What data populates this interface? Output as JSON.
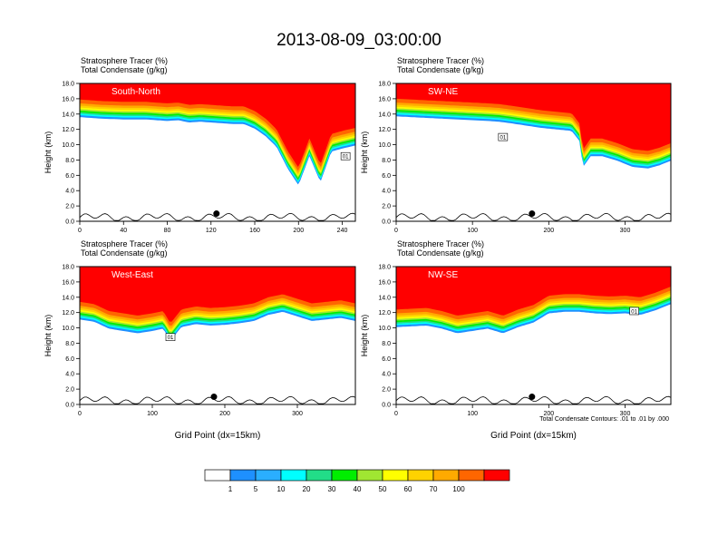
{
  "title": "2013-08-09_03:00:00",
  "footnote": "Total Condensate Contours: .01 to .01 by .000",
  "colorbar": {
    "colors": [
      "#ffffff",
      "#1e90ff",
      "#2aaeff",
      "#00ffff",
      "#22dd88",
      "#00ee00",
      "#a0e632",
      "#ffff00",
      "#ffd200",
      "#ffaa00",
      "#ff6600",
      "#ff0000"
    ],
    "labels": [
      "1",
      "5",
      "10",
      "20",
      "30",
      "40",
      "50",
      "60",
      "70",
      "100"
    ]
  },
  "chart_data": [
    {
      "type": "heatmap",
      "panel": "top-left",
      "label": "South-North",
      "title_line1": "Stratosphere Tracer   (%)",
      "title_line2": "Total Condensate   (g/kg)",
      "ylabel": "Height (km)",
      "xlabel": "",
      "xlim": [
        0,
        252
      ],
      "ylim": [
        0,
        18
      ],
      "xticks": [
        0,
        40,
        80,
        120,
        160,
        200,
        240
      ],
      "yticks": [
        "0.0",
        "2.0",
        "4.0",
        "6.0",
        "8.0",
        "10.0",
        "12.0",
        "14.0",
        "16.0",
        "18.0"
      ],
      "marker_x": 125,
      "marker_y": 1.0,
      "box_label": "01",
      "box_x": 243,
      "box_y": 8.5,
      "tropopause_x": [
        0,
        20,
        40,
        60,
        80,
        90,
        100,
        110,
        120,
        130,
        140,
        150,
        160,
        170,
        180,
        190,
        200,
        210,
        220,
        230,
        240,
        252
      ],
      "tropopause_y": [
        14.3,
        14.1,
        14.0,
        14.0,
        13.8,
        13.9,
        13.6,
        13.7,
        13.6,
        13.5,
        13.4,
        13.4,
        12.8,
        11.8,
        10.4,
        7.6,
        5.4,
        9.2,
        5.8,
        9.8,
        10.2,
        10.6
      ]
    },
    {
      "type": "heatmap",
      "panel": "top-right",
      "label": "SW-NE",
      "title_line1": "Stratosphere Tracer   (%)",
      "title_line2": "Total Condensate   (g/kg)",
      "ylabel": "Height (km)",
      "xlabel": "",
      "xlim": [
        0,
        360
      ],
      "ylim": [
        0,
        18
      ],
      "xticks": [
        0,
        100,
        200,
        300
      ],
      "yticks": [
        "0.0",
        "2.0",
        "4.0",
        "6.0",
        "8.0",
        "10.0",
        "12.0",
        "14.0",
        "16.0",
        "18.0"
      ],
      "marker_x": 178,
      "marker_y": 1.0,
      "box_label": "01",
      "box_x": 140,
      "box_y": 11.0,
      "tropopause_x": [
        0,
        20,
        40,
        60,
        80,
        100,
        120,
        135,
        150,
        170,
        190,
        210,
        230,
        240,
        245,
        255,
        270,
        290,
        310,
        330,
        345,
        360
      ],
      "tropopause_y": [
        14.4,
        14.3,
        14.2,
        14.1,
        14.0,
        13.9,
        13.8,
        13.7,
        13.5,
        13.2,
        12.9,
        12.7,
        12.5,
        11.2,
        7.8,
        9.2,
        9.2,
        8.6,
        7.8,
        7.6,
        8.0,
        8.6
      ]
    },
    {
      "type": "heatmap",
      "panel": "bottom-left",
      "label": "West-East",
      "title_line1": "Stratosphere Tracer   (%)",
      "title_line2": "Total Condensate   (g/kg)",
      "ylabel": "Height (km)",
      "xlabel": "Grid Point (dx=15km)",
      "xlim": [
        0,
        380
      ],
      "ylim": [
        0,
        18
      ],
      "xticks": [
        0,
        100,
        200,
        300
      ],
      "yticks": [
        "0.0",
        "2.0",
        "4.0",
        "6.0",
        "8.0",
        "10.0",
        "12.0",
        "14.0",
        "16.0",
        "18.0"
      ],
      "marker_x": 185,
      "marker_y": 1.0,
      "box_label": "01",
      "box_x": 125,
      "box_y": 8.8,
      "tropopause_x": [
        0,
        20,
        40,
        60,
        80,
        100,
        115,
        125,
        140,
        160,
        180,
        200,
        220,
        240,
        260,
        280,
        300,
        320,
        340,
        360,
        380
      ],
      "tropopause_y": [
        11.8,
        11.5,
        10.6,
        10.3,
        10.0,
        10.3,
        10.6,
        9.0,
        10.8,
        11.2,
        11.0,
        11.1,
        11.3,
        11.6,
        12.4,
        12.8,
        12.2,
        11.6,
        11.8,
        12.0,
        11.6
      ]
    },
    {
      "type": "heatmap",
      "panel": "bottom-right",
      "label": "NW-SE",
      "title_line1": "Stratosphere Tracer   (%)",
      "title_line2": "Total Condensate   (g/kg)",
      "ylabel": "Height (km)",
      "xlabel": "Grid Point (dx=15km)",
      "xlim": [
        0,
        360
      ],
      "ylim": [
        0,
        18
      ],
      "xticks": [
        0,
        100,
        200,
        300
      ],
      "yticks": [
        "0.0",
        "2.0",
        "4.0",
        "6.0",
        "8.0",
        "10.0",
        "12.0",
        "14.0",
        "16.0",
        "18.0"
      ],
      "marker_x": 178,
      "marker_y": 1.0,
      "box_label": "01",
      "box_x": 312,
      "box_y": 12.2,
      "tropopause_x": [
        0,
        20,
        40,
        60,
        80,
        100,
        120,
        140,
        160,
        180,
        200,
        220,
        240,
        260,
        280,
        300,
        320,
        340,
        360
      ],
      "tropopause_y": [
        10.8,
        10.9,
        11.0,
        10.6,
        10.0,
        10.3,
        10.6,
        10.0,
        10.8,
        11.4,
        12.6,
        12.8,
        12.8,
        12.6,
        12.5,
        12.6,
        12.4,
        13.0,
        13.8
      ]
    }
  ]
}
